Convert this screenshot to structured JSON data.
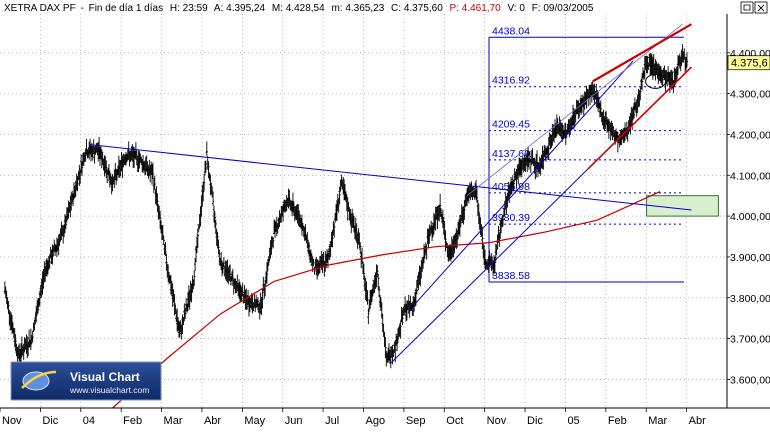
{
  "header": {
    "symbol": "XETRA DAX PF",
    "period": "Fin de día 1 días",
    "time": "H: 23:59",
    "open": "A: 4.395,24",
    "high": "M: 4.428,54",
    "low": "m: 4.365,23",
    "close": "C: 4.375,60",
    "pvalue": "P: 4.461,70",
    "volume": "V: 0",
    "date": "F: 09/03/2005"
  },
  "logo": {
    "name": "Visual Chart",
    "url": "www.visualchart.com"
  },
  "colors": {
    "price_bars": "#000000",
    "moving_average": "#cc0000",
    "trendlines": "#0000cc",
    "channel_upper": "#cc0000",
    "fib_levels": "#0000cc",
    "target_box_fill": "#d8f0d0",
    "target_box_stroke": "#2a7a2a",
    "price_badge": "#ffff99"
  },
  "chart_data": {
    "type": "ohlc",
    "ylim": [
      3530,
      4495
    ],
    "yticks": [
      3600,
      3700,
      3800,
      3900,
      4000,
      4100,
      4200,
      4300,
      4400
    ],
    "ytick_labels": [
      "3.600,00",
      "3.700,00",
      "3.800,00",
      "3.900,00",
      "4.000,00",
      "4.100,00",
      "4.200,00",
      "4.300,00",
      "4.400,00"
    ],
    "last_price": 4375.6,
    "last_price_label": "4.375,6",
    "x_months": [
      "Nov",
      "Dic",
      "04",
      "Feb",
      "Mar",
      "Abr",
      "May",
      "Jun",
      "Jul",
      "Ago",
      "Sep",
      "Oct",
      "Nov",
      "Dic",
      "05",
      "Feb",
      "Mar",
      "Abr"
    ],
    "price_path": [
      [
        0,
        3820
      ],
      [
        3,
        3660
      ],
      [
        6,
        3700
      ],
      [
        9,
        3870
      ],
      [
        13,
        3960
      ],
      [
        18,
        4160
      ],
      [
        21,
        4160
      ],
      [
        24,
        4080
      ],
      [
        27,
        4150
      ],
      [
        30,
        4140
      ],
      [
        33,
        4100
      ],
      [
        36,
        3890
      ],
      [
        39,
        3710
      ],
      [
        42,
        3840
      ],
      [
        45,
        4150
      ],
      [
        48,
        3890
      ],
      [
        51,
        3840
      ],
      [
        54,
        3790
      ],
      [
        57,
        3780
      ],
      [
        60,
        3960
      ],
      [
        63,
        4040
      ],
      [
        66,
        3990
      ],
      [
        69,
        3870
      ],
      [
        72,
        3890
      ],
      [
        75,
        4080
      ],
      [
        77,
        4000
      ],
      [
        79,
        3940
      ],
      [
        81,
        3770
      ],
      [
        83,
        3870
      ],
      [
        85,
        3650
      ],
      [
        87,
        3680
      ],
      [
        89,
        3770
      ],
      [
        91,
        3780
      ],
      [
        93,
        3880
      ],
      [
        95,
        3970
      ],
      [
        97,
        4020
      ],
      [
        99,
        3900
      ],
      [
        101,
        3960
      ],
      [
        103,
        4050
      ],
      [
        105,
        4060
      ],
      [
        107,
        3890
      ],
      [
        109,
        3880
      ],
      [
        111,
        4000
      ],
      [
        113,
        4080
      ],
      [
        115,
        4120
      ],
      [
        117,
        4140
      ],
      [
        119,
        4120
      ],
      [
        121,
        4170
      ],
      [
        123,
        4220
      ],
      [
        125,
        4200
      ],
      [
        127,
        4250
      ],
      [
        129,
        4280
      ],
      [
        131,
        4310
      ],
      [
        133,
        4250
      ],
      [
        135,
        4210
      ],
      [
        137,
        4180
      ],
      [
        139,
        4220
      ],
      [
        141,
        4280
      ],
      [
        143,
        4380
      ],
      [
        145,
        4360
      ],
      [
        147,
        4340
      ],
      [
        149,
        4330
      ],
      [
        151,
        4400
      ],
      [
        152,
        4376
      ]
    ],
    "moving_average": [
      [
        24,
        3530
      ],
      [
        36,
        3650
      ],
      [
        48,
        3760
      ],
      [
        60,
        3840
      ],
      [
        72,
        3880
      ],
      [
        84,
        3905
      ],
      [
        96,
        3925
      ],
      [
        108,
        3935
      ],
      [
        120,
        3960
      ],
      [
        132,
        3990
      ],
      [
        140,
        4030
      ],
      [
        146,
        4060
      ]
    ],
    "trendlines": [
      {
        "name": "downtrend",
        "from": [
          19,
          4175
        ],
        "to": [
          153,
          4015
        ]
      },
      {
        "name": "support",
        "from": [
          86,
          3640
        ],
        "to": [
          153,
          4365
        ]
      },
      {
        "name": "channel_lower",
        "from": [
          91,
          3780
        ],
        "to": [
          140,
          4380
        ]
      },
      {
        "name": "channel_upper_thin",
        "from": [
          103,
          4050
        ],
        "to": [
          151,
          4470
        ]
      },
      {
        "name": "channel_upper_red",
        "from": [
          131,
          4330
        ],
        "to": [
          153,
          4470
        ]
      }
    ],
    "fibonacci": {
      "high": 4438.04,
      "low": 3838.58,
      "levels": [
        {
          "label": "4438.04",
          "value": 4438.04
        },
        {
          "label": "4316.92",
          "value": 4316.92
        },
        {
          "label": "4209.45",
          "value": 4209.45
        },
        {
          "label": "4137.60",
          "value": 4137.6
        },
        {
          "label": "4056.98",
          "value": 4056.98
        },
        {
          "label": "3980.39",
          "value": 3980.39
        },
        {
          "label": "3838.58",
          "value": 3838.58
        }
      ]
    },
    "target_box": {
      "from": [
        143,
        4050
      ],
      "to": [
        159,
        4000
      ]
    },
    "marker_ellipse": {
      "at": [
        145,
        4330
      ]
    }
  }
}
